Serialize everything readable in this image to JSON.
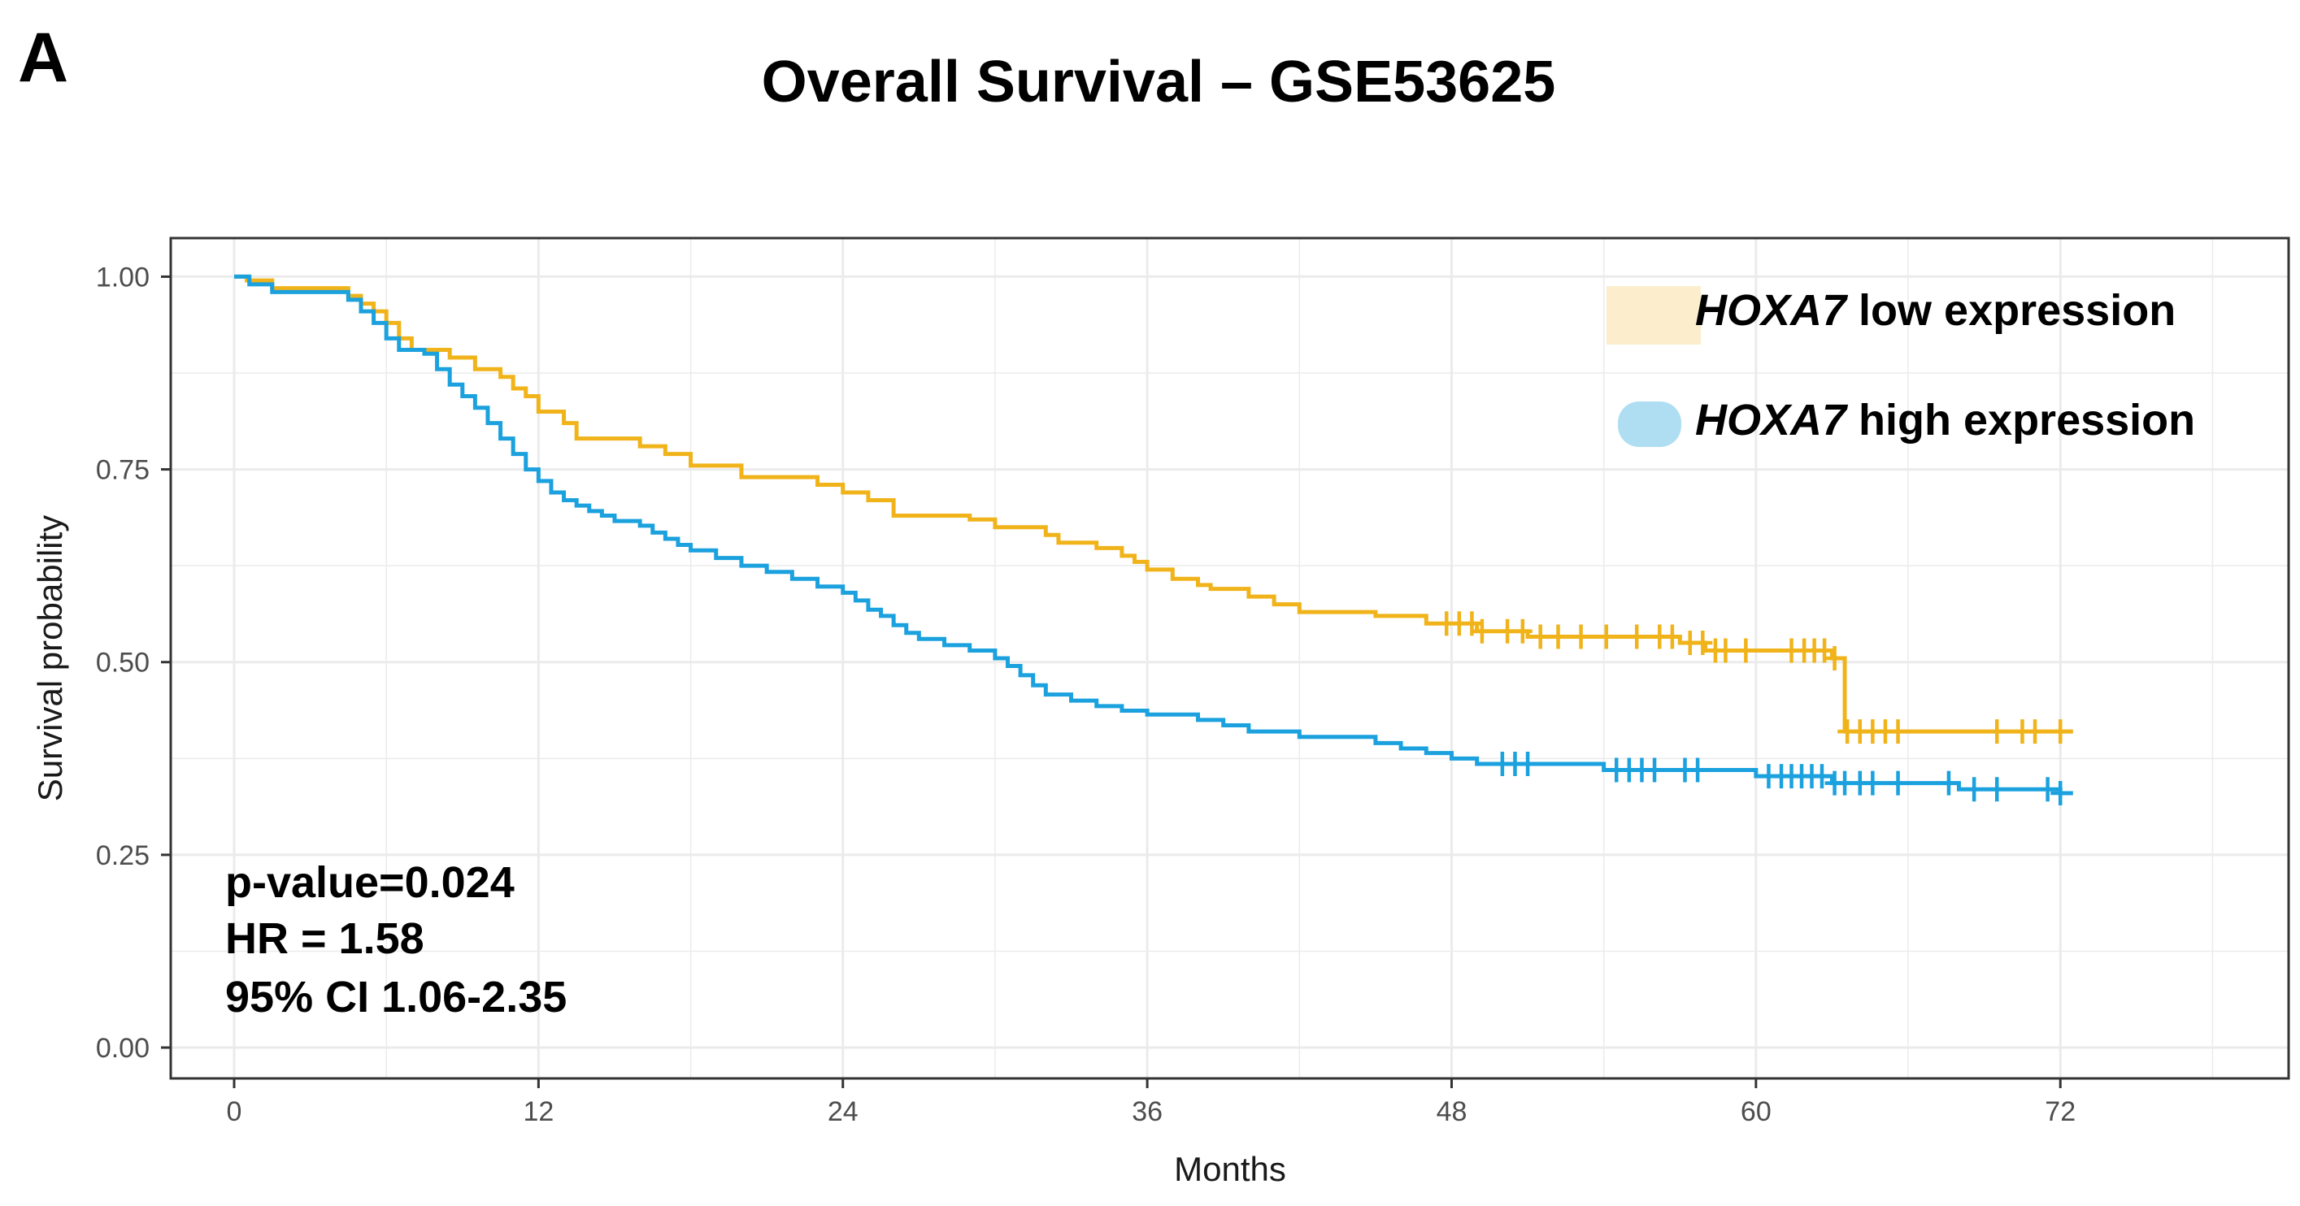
{
  "panel_label": "A",
  "colors": {
    "low": "#F0B31A",
    "high": "#1BA1DE",
    "grid": "#EBEBEB",
    "frame": "#333333"
  },
  "stats": {
    "pvalue": "p-value=0.024",
    "hr": "HR = 1.58",
    "ci": "95% CI 1.06-2.35"
  },
  "legend": {
    "low": {
      "gene": "HOXA7",
      "rest": " low expression"
    },
    "high": {
      "gene": "HOXA7",
      "rest": " high expression"
    }
  },
  "chart_data": {
    "type": "line",
    "subtype": "kaplan-meier step",
    "title": "Overall Survival – GSE53625",
    "xlabel": "Months",
    "ylabel": "Survival probability",
    "xlim": [
      -2.5,
      81
    ],
    "ylim": [
      -0.04,
      1.05
    ],
    "xticks": [
      0,
      12,
      24,
      36,
      48,
      60,
      72
    ],
    "yticks": [
      0.0,
      0.25,
      0.5,
      0.75,
      1.0
    ],
    "ytick_labels": [
      "0.00",
      "0.25",
      "0.50",
      "0.75",
      "1.00"
    ],
    "grid": true,
    "legend_position": "top-right",
    "series": [
      {
        "name": "HOXA7 low expression",
        "color_key": "low",
        "steps": [
          [
            0,
            1.0
          ],
          [
            0.5,
            0.995
          ],
          [
            1.5,
            0.985
          ],
          [
            4.5,
            0.975
          ],
          [
            5,
            0.965
          ],
          [
            5.5,
            0.955
          ],
          [
            6,
            0.94
          ],
          [
            6.5,
            0.92
          ],
          [
            7,
            0.905
          ],
          [
            8.5,
            0.895
          ],
          [
            9.5,
            0.88
          ],
          [
            10.5,
            0.87
          ],
          [
            11,
            0.855
          ],
          [
            11.5,
            0.845
          ],
          [
            12,
            0.825
          ],
          [
            13,
            0.81
          ],
          [
            13.5,
            0.79
          ],
          [
            16,
            0.78
          ],
          [
            17,
            0.77
          ],
          [
            18,
            0.755
          ],
          [
            20,
            0.74
          ],
          [
            23,
            0.73
          ],
          [
            24,
            0.72
          ],
          [
            25,
            0.71
          ],
          [
            26,
            0.69
          ],
          [
            29,
            0.685
          ],
          [
            30,
            0.675
          ],
          [
            32,
            0.665
          ],
          [
            32.5,
            0.655
          ],
          [
            34,
            0.648
          ],
          [
            35,
            0.638
          ],
          [
            35.5,
            0.63
          ],
          [
            36,
            0.62
          ],
          [
            37,
            0.608
          ],
          [
            38,
            0.6
          ],
          [
            38.5,
            0.595
          ],
          [
            40,
            0.585
          ],
          [
            41,
            0.575
          ],
          [
            42,
            0.565
          ],
          [
            45,
            0.56
          ],
          [
            47,
            0.55
          ],
          [
            49,
            0.54
          ],
          [
            51,
            0.533
          ],
          [
            57,
            0.525
          ],
          [
            58,
            0.515
          ],
          [
            63,
            0.505
          ],
          [
            63.5,
            0.41
          ],
          [
            72.5,
            0.41
          ]
        ],
        "censor_times": [
          47.8,
          48.3,
          48.8,
          49.2,
          50.2,
          50.8,
          51.5,
          52.2,
          53.1,
          54.1,
          55.3,
          56.2,
          56.7,
          57.4,
          57.9,
          58.4,
          58.8,
          59.6,
          61.4,
          61.9,
          62.3,
          62.7,
          63.1,
          63.6,
          64.1,
          64.6,
          65.1,
          65.6,
          69.5,
          70.5,
          71.0,
          72.0
        ]
      },
      {
        "name": "HOXA7 high expression",
        "color_key": "high",
        "steps": [
          [
            0,
            1.0
          ],
          [
            0.6,
            0.99
          ],
          [
            1.5,
            0.98
          ],
          [
            4.5,
            0.97
          ],
          [
            5,
            0.955
          ],
          [
            5.5,
            0.94
          ],
          [
            6,
            0.92
          ],
          [
            6.5,
            0.905
          ],
          [
            7.5,
            0.9
          ],
          [
            8,
            0.88
          ],
          [
            8.5,
            0.86
          ],
          [
            9,
            0.845
          ],
          [
            9.5,
            0.83
          ],
          [
            10,
            0.81
          ],
          [
            10.5,
            0.79
          ],
          [
            11,
            0.77
          ],
          [
            11.5,
            0.75
          ],
          [
            12,
            0.735
          ],
          [
            12.5,
            0.72
          ],
          [
            13,
            0.71
          ],
          [
            13.5,
            0.703
          ],
          [
            14,
            0.696
          ],
          [
            14.5,
            0.69
          ],
          [
            15,
            0.683
          ],
          [
            16,
            0.677
          ],
          [
            16.5,
            0.668
          ],
          [
            17,
            0.66
          ],
          [
            17.5,
            0.652
          ],
          [
            18,
            0.645
          ],
          [
            19,
            0.635
          ],
          [
            20,
            0.625
          ],
          [
            21,
            0.617
          ],
          [
            22,
            0.608
          ],
          [
            23,
            0.598
          ],
          [
            24,
            0.59
          ],
          [
            24.5,
            0.58
          ],
          [
            25,
            0.568
          ],
          [
            25.5,
            0.56
          ],
          [
            26,
            0.548
          ],
          [
            26.5,
            0.538
          ],
          [
            27,
            0.53
          ],
          [
            28,
            0.522
          ],
          [
            29,
            0.515
          ],
          [
            30,
            0.505
          ],
          [
            30.5,
            0.495
          ],
          [
            31,
            0.483
          ],
          [
            31.5,
            0.47
          ],
          [
            32,
            0.458
          ],
          [
            33,
            0.45
          ],
          [
            34,
            0.443
          ],
          [
            35,
            0.437
          ],
          [
            36,
            0.432
          ],
          [
            38,
            0.425
          ],
          [
            39,
            0.418
          ],
          [
            40,
            0.41
          ],
          [
            42,
            0.403
          ],
          [
            45,
            0.395
          ],
          [
            46,
            0.388
          ],
          [
            47,
            0.382
          ],
          [
            48,
            0.375
          ],
          [
            49,
            0.368
          ],
          [
            54,
            0.36
          ],
          [
            60,
            0.352
          ],
          [
            63,
            0.343
          ],
          [
            68,
            0.335
          ],
          [
            72,
            0.33
          ],
          [
            72.5,
            0.33
          ]
        ],
        "censor_times": [
          50.0,
          50.5,
          51.0,
          54.5,
          55.0,
          55.5,
          56.0,
          57.2,
          57.7,
          60.5,
          61.0,
          61.4,
          61.8,
          62.2,
          62.6,
          63.1,
          63.5,
          64.1,
          64.6,
          65.6,
          67.6,
          68.6,
          69.5,
          71.5,
          72.0
        ]
      }
    ]
  }
}
